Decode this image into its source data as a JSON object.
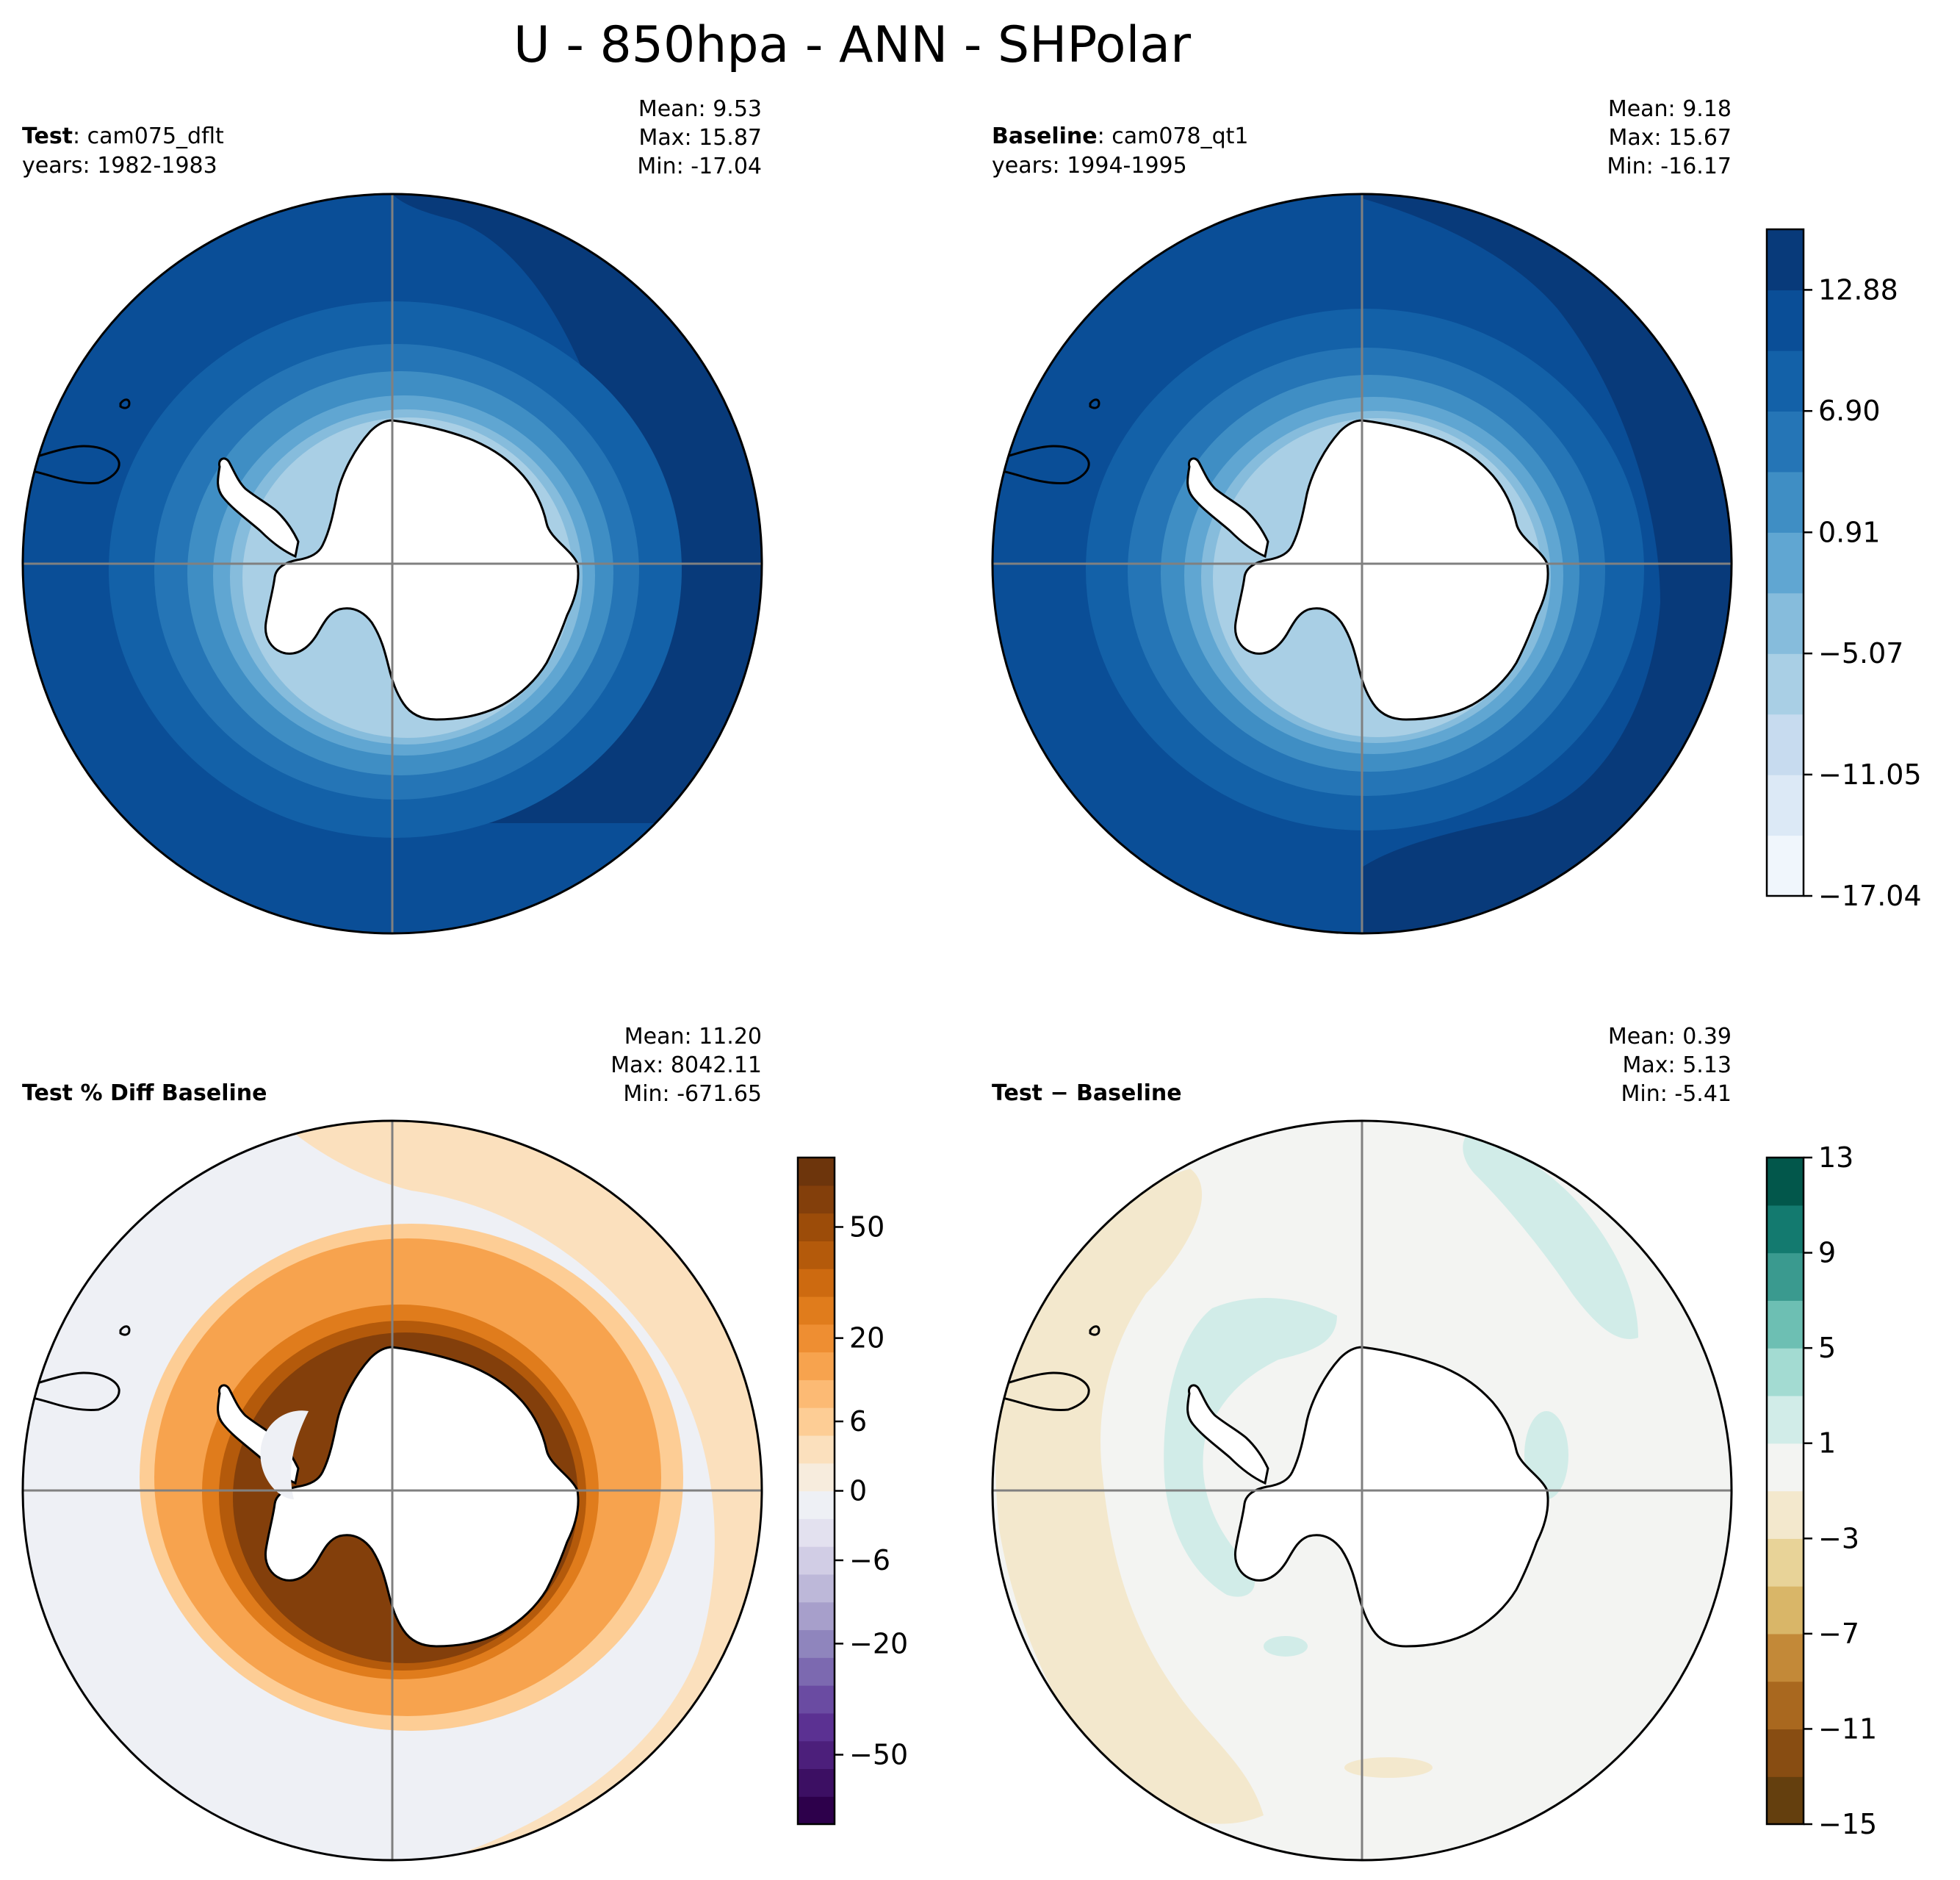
{
  "figure": {
    "title": "U - 850hpa - ANN - SHPolar"
  },
  "chart_data": [
    {
      "type": "heatmap",
      "projection": "south-polar-stereographic",
      "panel": "test",
      "label_bold": "Test",
      "label_rest": ": cam075_dflt",
      "years": "years: 1982-1983",
      "stats": [
        "Mean:  9.53",
        "Max: 15.87",
        "Min: -17.04"
      ],
      "colormap": "Blues",
      "colorbar": "shared-top"
    },
    {
      "type": "heatmap",
      "projection": "south-polar-stereographic",
      "panel": "baseline",
      "label_bold": "Baseline",
      "label_rest": ": cam078_qt1",
      "years": "years: 1994-1995",
      "stats": [
        "Mean:  9.18",
        "Max: 15.67",
        "Min: -16.17"
      ],
      "colormap": "Blues",
      "colorbar": {
        "levels": [
          -17.04,
          -14.05,
          -11.05,
          -8.06,
          -5.07,
          -2.08,
          0.91,
          3.91,
          6.9,
          9.89,
          12.88,
          15.87
        ],
        "tick_values": [
          -17.04,
          -11.05,
          -5.07,
          0.91,
          6.9,
          12.88
        ],
        "tick_labels": [
          "−17.04",
          "−11.05",
          "−5.07",
          "0.91",
          "6.90",
          "12.88"
        ],
        "colors": [
          "#f0f6fc",
          "#dce9f6",
          "#c7dbef",
          "#a9cfe5",
          "#86bcdc",
          "#60a6d2",
          "#3f8ec4",
          "#2575b6",
          "#1361a8",
          "#0a4e97",
          "#083a7a"
        ]
      }
    },
    {
      "type": "heatmap",
      "projection": "south-polar-stereographic",
      "panel": "percent-diff",
      "label_bold": "Test % Diff Baseline",
      "stats": [
        "Mean: 11.20",
        "Max: 8042.11",
        "Min: -671.65"
      ],
      "colormap": "PuOr",
      "colorbar": {
        "tick_labels": [
          "−50",
          "−20",
          "−6",
          "0",
          "6",
          "20",
          "50"
        ],
        "colors": [
          "#2d004b",
          "#3c0f63",
          "#4c1f7b",
          "#5b3192",
          "#6a4ba2",
          "#7c69b0",
          "#8f85bd",
          "#a79fcb",
          "#bdb8d9",
          "#d1cde5",
          "#e3e1ef",
          "#eef0f5",
          "#f7ecdd",
          "#fbe0bd",
          "#fdcd95",
          "#fcba74",
          "#f7a34e",
          "#ee8e32",
          "#e07c1c",
          "#cd6a10",
          "#b45a0b",
          "#9c4c09",
          "#833f0b",
          "#6d350c"
        ]
      }
    },
    {
      "type": "heatmap",
      "projection": "south-polar-stereographic",
      "panel": "difference",
      "label_bold": "Test",
      "label_rest": " − Baseline",
      "stats": [
        "Mean:  0.39",
        "Max:  5.13",
        "Min: -5.41"
      ],
      "colormap": "BrBG",
      "colorbar": {
        "levels": [
          -15,
          -13,
          -11,
          -9,
          -7,
          -5,
          -3,
          -1,
          1,
          3,
          5,
          7,
          9,
          11,
          13
        ],
        "tick_values": [
          -15,
          -11,
          -7,
          -3,
          1,
          5,
          9,
          13
        ],
        "tick_labels": [
          "−15",
          "−11",
          "−7",
          "−3",
          "1",
          "5",
          "9",
          "13"
        ],
        "colors": [
          "#643f0e",
          "#884d12",
          "#a9681f",
          "#c38938",
          "#d9b668",
          "#e8d398",
          "#f3e8cd",
          "#f3f4f2",
          "#d1ece8",
          "#a3dbd2",
          "#6dbfb3",
          "#3a9a8f",
          "#137a6f",
          "#02574b"
        ]
      }
    }
  ]
}
